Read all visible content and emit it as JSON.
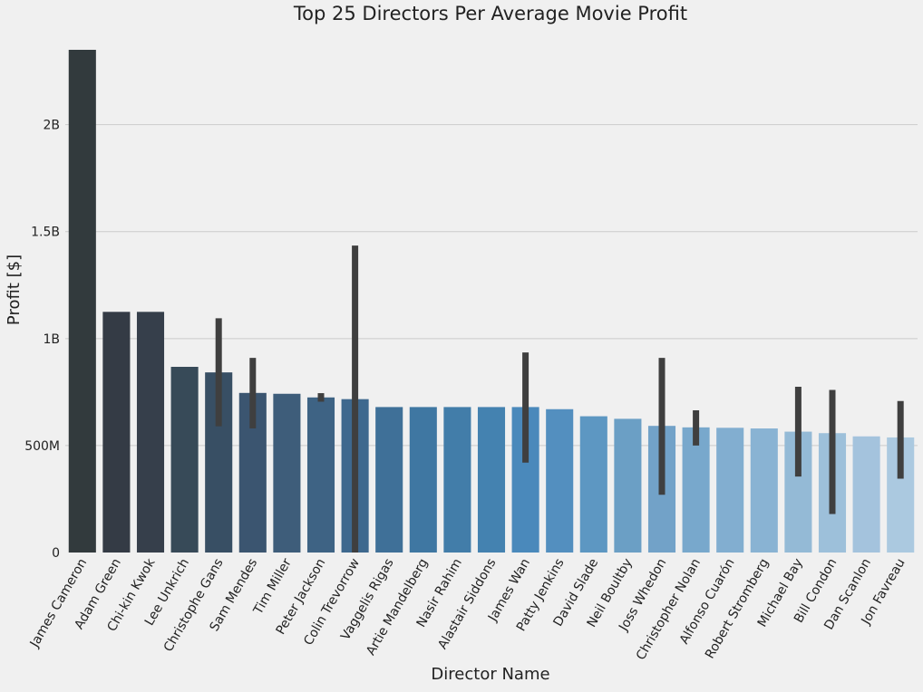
{
  "chart_data": {
    "type": "bar",
    "title": "Top 25 Directors Per Average Movie Profit",
    "xlabel": "Director Name",
    "ylabel": "Profit [$]",
    "ylim": [
      0,
      2350000000
    ],
    "grid": "horizontal",
    "yticks": [
      {
        "value": 0,
        "label": "0"
      },
      {
        "value": 500000000,
        "label": "500M"
      },
      {
        "value": 1000000000,
        "label": "1B"
      },
      {
        "value": 1500000000,
        "label": "1.5B"
      },
      {
        "value": 2000000000,
        "label": "2B"
      }
    ],
    "categories": [
      "James Cameron",
      "Adam Green",
      "Chi-kin Kwok",
      "Lee Unkrich",
      "Christophe Gans",
      "Sam Mendes",
      "Tim Miller",
      "Peter Jackson",
      "Colin Trevorrow",
      "Vaggelis Rigas",
      "Artie Mandelberg",
      "Nasir Rahim",
      "Alastair Siddons",
      "James Wan",
      "Patty Jenkins",
      "David Slade",
      "Neil Boultby",
      "Joss Whedon",
      "Christopher Nolan",
      "Alfonso Cuarón",
      "Robert Stromberg",
      "Michael Bay",
      "Bill Condon",
      "Dan Scanlon",
      "Jon Favreau"
    ],
    "values": [
      2350000000,
      1125000000,
      1125000000,
      868000000,
      842000000,
      746000000,
      742000000,
      725000000,
      717000000,
      680000000,
      680000000,
      680000000,
      680000000,
      680000000,
      670000000,
      637000000,
      625000000,
      592000000,
      585000000,
      583000000,
      580000000,
      565000000,
      558000000,
      543000000,
      538000000
    ],
    "error_bars": [
      null,
      null,
      null,
      null,
      [
        590000000,
        1095000000
      ],
      [
        580000000,
        910000000
      ],
      null,
      [
        705000000,
        745000000
      ],
      [
        0,
        1435000000
      ],
      null,
      null,
      null,
      null,
      [
        420000000,
        935000000
      ],
      null,
      null,
      null,
      [
        270000000,
        910000000
      ],
      [
        500000000,
        665000000
      ],
      null,
      null,
      [
        355000000,
        775000000
      ],
      [
        180000000,
        760000000
      ],
      null,
      [
        345000000,
        708000000
      ]
    ],
    "colors": [
      "#323a3d",
      "#343b45",
      "#363f4b",
      "#374a58",
      "#384f64",
      "#3b5570",
      "#3e5d7a",
      "#3e6384",
      "#3e688e",
      "#3f7098",
      "#3f77a2",
      "#427da9",
      "#4482b0",
      "#4a89bb",
      "#538fbf",
      "#5d97c2",
      "#6b9fc5",
      "#72a2c8",
      "#78a8cc",
      "#82aed0",
      "#89b3d3",
      "#94bad6",
      "#9dc0da",
      "#a4c3dd",
      "#abc9e0"
    ],
    "error_color": "#3f3f3f"
  }
}
